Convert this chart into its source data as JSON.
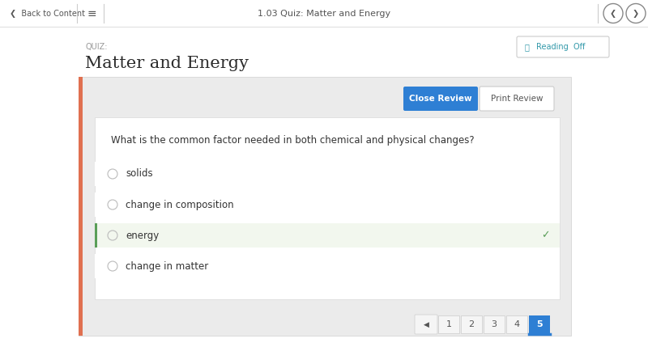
{
  "bg_color": "#ffffff",
  "page_bg": "#f5f5f5",
  "nav_bg": "#ffffff",
  "nav_border": "#e0e0e0",
  "nav_text": "1.03 Quiz: Matter and Energy",
  "nav_text_color": "#555555",
  "back_text": "Back to Content",
  "quiz_label": "QUIZ:",
  "quiz_label_color": "#999999",
  "title": "Matter and Energy",
  "title_color": "#2b2b2b",
  "orange_bar_color": "#e07050",
  "card_bg": "#ebebeb",
  "inner_card_bg": "#ffffff",
  "inner_card_border": "#d8d8d8",
  "question": "What is the common factor needed in both chemical and physical changes?",
  "question_color": "#333333",
  "options": [
    "solids",
    "change in composition",
    "energy",
    "change in matter"
  ],
  "option_colors": [
    "#ffffff",
    "#ffffff",
    "#f2f7ee",
    "#ffffff"
  ],
  "selected_index": 2,
  "selected_left_bar": "#5a9e58",
  "checkmark_color": "#5a9e58",
  "radio_color": "#bbbbbb",
  "option_text_color": "#333333",
  "close_review_btn_color": "#2e7fd4",
  "close_review_text": "Close Review",
  "print_review_text": "Print Review",
  "print_btn_border": "#cccccc",
  "print_btn_bg": "#ffffff",
  "btn_text_color": "#ffffff",
  "print_text_color": "#555555",
  "reading_text": "Reading  Off",
  "reading_color": "#3399aa",
  "reading_icon_color": "#3399aa",
  "page_numbers": [
    "1",
    "2",
    "3",
    "4",
    "5"
  ],
  "current_page": 4,
  "page_btn_active_color": "#2e7fd4",
  "page_btn_bg": "#f5f5f5",
  "page_btn_border": "#cccccc",
  "page_text_color": "#555555",
  "nav_sep_color": "#cccccc",
  "arrow_circle_color": "#888888"
}
